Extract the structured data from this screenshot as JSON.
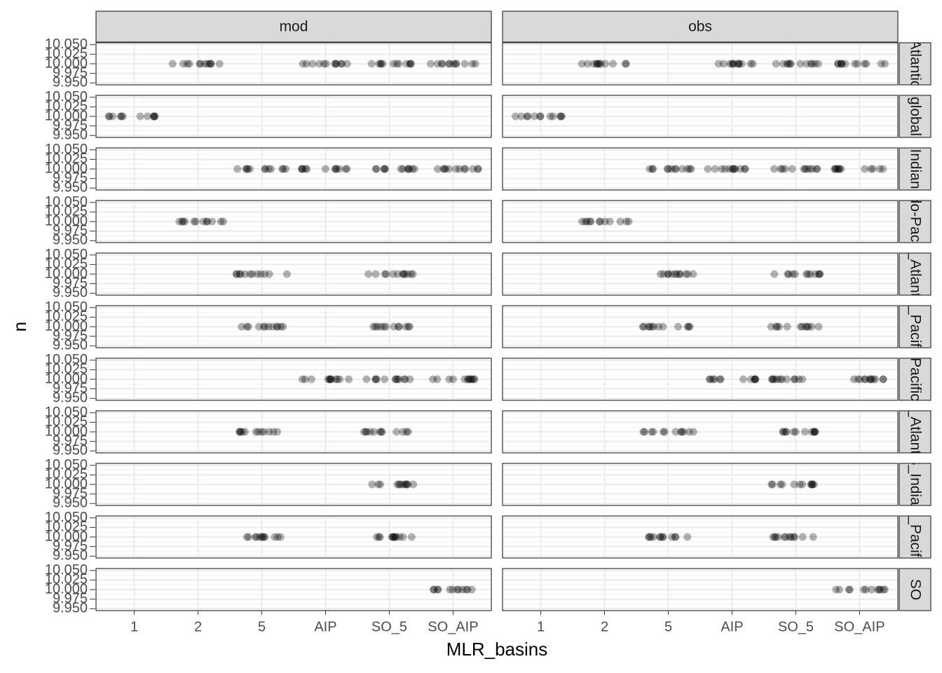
{
  "chart_data": {
    "type": "scatter",
    "x_label": "MLR_basins",
    "y_label": "n",
    "categories": [
      "1",
      "2",
      "5",
      "AIP",
      "SO_5",
      "SO_AIP"
    ],
    "facet_cols": [
      "mod",
      "obs"
    ],
    "facet_rows": [
      "Atlantic",
      "global",
      "Indian",
      "Indo-Pacific",
      "N_Atlantic",
      "N_Pacific",
      "Pacific",
      "S_Atlantic",
      "S_Indian",
      "S_Pacific",
      "SO"
    ],
    "values": [
      [
        [
          null,
          10,
          null,
          10,
          10,
          10
        ],
        [
          null,
          10,
          null,
          10,
          10,
          10
        ]
      ],
      [
        [
          10,
          null,
          null,
          null,
          null,
          null
        ],
        [
          10,
          null,
          null,
          null,
          null,
          null
        ]
      ],
      [
        [
          null,
          null,
          10,
          10,
          10,
          10
        ],
        [
          null,
          null,
          10,
          10,
          10,
          10
        ]
      ],
      [
        [
          null,
          10,
          null,
          null,
          null,
          null
        ],
        [
          null,
          10,
          null,
          null,
          null,
          null
        ]
      ],
      [
        [
          null,
          null,
          10,
          null,
          10,
          null
        ],
        [
          null,
          null,
          10,
          null,
          10,
          null
        ]
      ],
      [
        [
          null,
          null,
          10,
          null,
          10,
          null
        ],
        [
          null,
          null,
          10,
          null,
          10,
          null
        ]
      ],
      [
        [
          null,
          null,
          null,
          10,
          10,
          10
        ],
        [
          null,
          null,
          null,
          10,
          10,
          10
        ]
      ],
      [
        [
          null,
          null,
          10,
          null,
          10,
          null
        ],
        [
          null,
          null,
          10,
          null,
          10,
          null
        ]
      ],
      [
        [
          null,
          null,
          null,
          null,
          10,
          null
        ],
        [
          null,
          null,
          null,
          null,
          10,
          null
        ]
      ],
      [
        [
          null,
          null,
          10,
          null,
          10,
          null
        ],
        [
          null,
          null,
          10,
          null,
          10,
          null
        ]
      ],
      [
        [
          null,
          null,
          null,
          null,
          null,
          10
        ],
        [
          null,
          null,
          null,
          null,
          null,
          10
        ]
      ]
    ],
    "color": "#000000",
    "alpha": 0.3,
    "ylim": [
      9.945,
      10.055
    ],
    "yticks": [
      {
        "value": 9.95,
        "label": "9.950"
      },
      {
        "value": 9.975,
        "label": "9.975"
      },
      {
        "value": 10,
        "label": "10.000"
      },
      {
        "value": 10.025,
        "label": "10.025"
      },
      {
        "value": 10.05,
        "label": "10.050"
      }
    ],
    "grid": true
  }
}
